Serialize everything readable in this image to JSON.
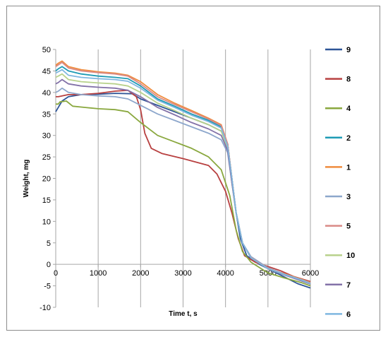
{
  "chart_data": {
    "type": "line",
    "xlabel": "Time t, s",
    "ylabel": "Weight, mg",
    "xlim": [
      0,
      6000
    ],
    "ylim": [
      -10,
      50
    ],
    "xticks": [
      0,
      1000,
      2000,
      3000,
      4000,
      5000,
      6000
    ],
    "yticks": [
      -10,
      -5,
      0,
      5,
      10,
      15,
      20,
      25,
      30,
      35,
      40,
      45,
      50
    ],
    "grid": "vertical",
    "legend_position": "right",
    "series": [
      {
        "name": "9",
        "color": "#2e5597",
        "points": [
          [
            0,
            35.5
          ],
          [
            60,
            36.5
          ],
          [
            150,
            38
          ],
          [
            300,
            39
          ],
          [
            600,
            39.5
          ],
          [
            1000,
            39.6
          ],
          [
            1400,
            39.8
          ],
          [
            1800,
            39.7
          ],
          [
            2000,
            38.5
          ],
          [
            2400,
            37
          ],
          [
            2800,
            35.5
          ],
          [
            3200,
            34
          ],
          [
            3600,
            32.5
          ],
          [
            3900,
            31
          ],
          [
            4050,
            28
          ],
          [
            4150,
            20
          ],
          [
            4250,
            12
          ],
          [
            4350,
            6
          ],
          [
            4500,
            2
          ],
          [
            4800,
            0
          ],
          [
            5100,
            -1.5
          ],
          [
            5400,
            -3
          ],
          [
            5700,
            -4.5
          ],
          [
            6000,
            -5.5
          ]
        ]
      },
      {
        "name": "8",
        "color": "#b84040",
        "points": [
          [
            0,
            39
          ],
          [
            60,
            39
          ],
          [
            150,
            39.2
          ],
          [
            300,
            39.5
          ],
          [
            600,
            39.5
          ],
          [
            1000,
            39.8
          ],
          [
            1400,
            40.3
          ],
          [
            1700,
            40.5
          ],
          [
            1900,
            39
          ],
          [
            2000,
            36
          ],
          [
            2100,
            30.5
          ],
          [
            2250,
            27
          ],
          [
            2500,
            25.8
          ],
          [
            3000,
            24.6
          ],
          [
            3300,
            23.8
          ],
          [
            3600,
            23
          ],
          [
            3800,
            21
          ],
          [
            4000,
            17
          ],
          [
            4150,
            12
          ],
          [
            4300,
            6
          ],
          [
            4450,
            2
          ],
          [
            4700,
            0.5
          ],
          [
            5000,
            -0.5
          ],
          [
            5300,
            -1.5
          ],
          [
            5600,
            -2.8
          ],
          [
            6000,
            -4
          ]
        ]
      },
      {
        "name": "4",
        "color": "#8aa83f",
        "points": [
          [
            0,
            37.3
          ],
          [
            60,
            37.3
          ],
          [
            100,
            37.8
          ],
          [
            250,
            38
          ],
          [
            400,
            36.8
          ],
          [
            700,
            36.5
          ],
          [
            1000,
            36.2
          ],
          [
            1400,
            36
          ],
          [
            1700,
            35.5
          ],
          [
            2000,
            33
          ],
          [
            2400,
            30
          ],
          [
            2800,
            28.5
          ],
          [
            3200,
            27
          ],
          [
            3600,
            25
          ],
          [
            3900,
            22
          ],
          [
            4100,
            16
          ],
          [
            4250,
            8
          ],
          [
            4400,
            3
          ],
          [
            4600,
            0.5
          ],
          [
            5000,
            -2
          ],
          [
            5400,
            -3.2
          ],
          [
            5800,
            -4.3
          ],
          [
            6000,
            -5
          ]
        ]
      },
      {
        "name": "2",
        "color": "#1e9bb5",
        "points": [
          [
            0,
            45
          ],
          [
            60,
            45.5
          ],
          [
            150,
            46
          ],
          [
            300,
            45
          ],
          [
            600,
            44.3
          ],
          [
            1000,
            43.8
          ],
          [
            1400,
            43.5
          ],
          [
            1700,
            43.2
          ],
          [
            2000,
            41.5
          ],
          [
            2400,
            38.5
          ],
          [
            2800,
            36.8
          ],
          [
            3200,
            35
          ],
          [
            3600,
            33.5
          ],
          [
            3900,
            32
          ],
          [
            4050,
            28
          ],
          [
            4150,
            20
          ],
          [
            4250,
            12
          ],
          [
            4400,
            5
          ],
          [
            4600,
            1.5
          ],
          [
            5000,
            -1
          ],
          [
            5400,
            -2.5
          ],
          [
            5800,
            -3.8
          ],
          [
            6000,
            -4.5
          ]
        ]
      },
      {
        "name": "1",
        "color": "#ef8c3e",
        "points": [
          [
            0,
            46.3
          ],
          [
            60,
            46.8
          ],
          [
            150,
            47.3
          ],
          [
            300,
            46
          ],
          [
            600,
            45.3
          ],
          [
            1000,
            44.8
          ],
          [
            1400,
            44.5
          ],
          [
            1700,
            44
          ],
          [
            2000,
            42.5
          ],
          [
            2400,
            39.5
          ],
          [
            2800,
            37.5
          ],
          [
            3200,
            35.8
          ],
          [
            3600,
            34
          ],
          [
            3900,
            32.5
          ],
          [
            4050,
            28
          ],
          [
            4150,
            20
          ],
          [
            4250,
            12
          ],
          [
            4400,
            5
          ],
          [
            4600,
            1.5
          ],
          [
            5000,
            -1
          ],
          [
            5400,
            -2.2
          ],
          [
            5800,
            -3.5
          ],
          [
            6000,
            -4.2
          ]
        ]
      },
      {
        "name": "3",
        "color": "#8da7cc",
        "points": [
          [
            0,
            40
          ],
          [
            60,
            40.3
          ],
          [
            150,
            41
          ],
          [
            300,
            40
          ],
          [
            600,
            39.5
          ],
          [
            1000,
            39.2
          ],
          [
            1400,
            39
          ],
          [
            1700,
            38.5
          ],
          [
            2000,
            37
          ],
          [
            2400,
            35
          ],
          [
            2800,
            33.5
          ],
          [
            3200,
            32
          ],
          [
            3600,
            30.5
          ],
          [
            3900,
            29
          ],
          [
            4050,
            26
          ],
          [
            4150,
            19
          ],
          [
            4250,
            12
          ],
          [
            4400,
            5
          ],
          [
            4600,
            1.8
          ],
          [
            5000,
            -0.8
          ],
          [
            5400,
            -2.3
          ],
          [
            5800,
            -3.6
          ],
          [
            6000,
            -4.3
          ]
        ]
      },
      {
        "name": "5",
        "color": "#d98a86",
        "points": [
          [
            0,
            46
          ],
          [
            60,
            46.4
          ],
          [
            150,
            47
          ],
          [
            300,
            45.7
          ],
          [
            600,
            45
          ],
          [
            1000,
            44.6
          ],
          [
            1400,
            44.3
          ],
          [
            1700,
            43.8
          ],
          [
            2000,
            42
          ],
          [
            2400,
            39
          ],
          [
            2800,
            37.2
          ],
          [
            3200,
            35.5
          ],
          [
            3600,
            33.8
          ],
          [
            3900,
            32.3
          ],
          [
            4050,
            28
          ],
          [
            4150,
            20
          ],
          [
            4250,
            12
          ],
          [
            4400,
            5
          ],
          [
            4600,
            1.6
          ],
          [
            5000,
            -0.9
          ],
          [
            5400,
            -2.4
          ],
          [
            5800,
            -3.7
          ],
          [
            6000,
            -4.4
          ]
        ]
      },
      {
        "name": "10",
        "color": "#b8d28c",
        "points": [
          [
            0,
            43.5
          ],
          [
            60,
            43.8
          ],
          [
            150,
            44.3
          ],
          [
            300,
            43
          ],
          [
            600,
            42.5
          ],
          [
            1000,
            42.2
          ],
          [
            1400,
            42
          ],
          [
            1700,
            41.5
          ],
          [
            2000,
            40
          ],
          [
            2400,
            37.5
          ],
          [
            2800,
            35.8
          ],
          [
            3200,
            34
          ],
          [
            3600,
            32.5
          ],
          [
            3900,
            31
          ],
          [
            4050,
            27
          ],
          [
            4150,
            19
          ],
          [
            4250,
            12
          ],
          [
            4400,
            5
          ],
          [
            4600,
            1.5
          ],
          [
            5000,
            -1
          ],
          [
            5400,
            -2.5
          ],
          [
            5800,
            -3.8
          ],
          [
            6000,
            -4.5
          ]
        ]
      },
      {
        "name": "7",
        "color": "#8372a8",
        "points": [
          [
            0,
            42
          ],
          [
            60,
            42.3
          ],
          [
            150,
            43
          ],
          [
            300,
            42
          ],
          [
            600,
            41.5
          ],
          [
            1000,
            41.2
          ],
          [
            1400,
            41
          ],
          [
            1700,
            40.5
          ],
          [
            2000,
            39
          ],
          [
            2400,
            36.5
          ],
          [
            2800,
            34.8
          ],
          [
            3200,
            33
          ],
          [
            3600,
            31.5
          ],
          [
            3900,
            30
          ],
          [
            4050,
            26.5
          ],
          [
            4150,
            19
          ],
          [
            4250,
            12
          ],
          [
            4400,
            5
          ],
          [
            4600,
            1.5
          ],
          [
            5000,
            -1
          ],
          [
            5400,
            -2.5
          ],
          [
            5800,
            -3.9
          ],
          [
            6000,
            -4.6
          ]
        ]
      },
      {
        "name": "6",
        "color": "#7fb7e0",
        "points": [
          [
            0,
            44.5
          ],
          [
            60,
            44.8
          ],
          [
            150,
            45.3
          ],
          [
            300,
            44
          ],
          [
            600,
            43.5
          ],
          [
            1000,
            43.2
          ],
          [
            1400,
            43
          ],
          [
            1700,
            42.6
          ],
          [
            2000,
            41
          ],
          [
            2400,
            38.2
          ],
          [
            2800,
            36.5
          ],
          [
            3200,
            34.7
          ],
          [
            3600,
            33.2
          ],
          [
            3900,
            31.7
          ],
          [
            4050,
            27.5
          ],
          [
            4150,
            20
          ],
          [
            4250,
            12
          ],
          [
            4400,
            5
          ],
          [
            4600,
            1.5
          ],
          [
            5000,
            -1
          ],
          [
            5400,
            -2.4
          ],
          [
            5800,
            -3.7
          ],
          [
            6000,
            -4.5
          ]
        ]
      }
    ]
  }
}
